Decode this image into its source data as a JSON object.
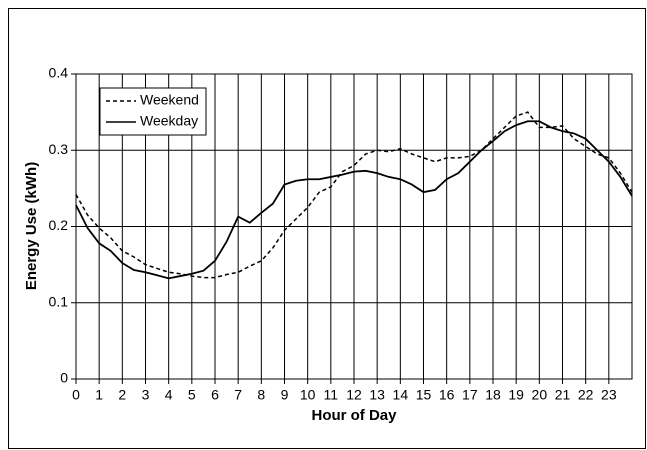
{
  "chart_data": {
    "type": "line",
    "xlabel": "Hour of Day",
    "ylabel": "Energy Use (kWh)",
    "x": [
      0,
      0.5,
      1,
      1.5,
      2,
      2.5,
      3,
      3.5,
      4,
      4.5,
      5,
      5.5,
      6,
      6.5,
      7,
      7.5,
      8,
      8.5,
      9,
      9.5,
      10,
      10.5,
      11,
      11.5,
      12,
      12.5,
      13,
      13.5,
      14,
      14.5,
      15,
      15.5,
      16,
      16.5,
      17,
      17.5,
      18,
      18.5,
      19,
      19.5,
      20,
      20.5,
      21,
      21.5,
      22,
      22.5,
      23,
      23.5,
      24
    ],
    "series": [
      {
        "name": "Weekend",
        "color": "#000000",
        "line_style": "dashed",
        "values": [
          0.242,
          0.215,
          0.198,
          0.185,
          0.168,
          0.16,
          0.15,
          0.145,
          0.14,
          0.138,
          0.135,
          0.133,
          0.133,
          0.137,
          0.14,
          0.148,
          0.155,
          0.172,
          0.195,
          0.21,
          0.225,
          0.245,
          0.252,
          0.272,
          0.28,
          0.295,
          0.3,
          0.298,
          0.302,
          0.295,
          0.29,
          0.285,
          0.29,
          0.29,
          0.292,
          0.3,
          0.315,
          0.33,
          0.345,
          0.35,
          0.33,
          0.33,
          0.332,
          0.315,
          0.305,
          0.295,
          0.29,
          0.27,
          0.245
        ]
      },
      {
        "name": "Weekday",
        "color": "#000000",
        "line_style": "solid",
        "values": [
          0.228,
          0.198,
          0.178,
          0.168,
          0.152,
          0.143,
          0.14,
          0.136,
          0.132,
          0.135,
          0.138,
          0.142,
          0.155,
          0.18,
          0.213,
          0.205,
          0.218,
          0.23,
          0.255,
          0.26,
          0.262,
          0.262,
          0.265,
          0.268,
          0.272,
          0.273,
          0.27,
          0.265,
          0.262,
          0.255,
          0.245,
          0.248,
          0.262,
          0.27,
          0.285,
          0.3,
          0.312,
          0.325,
          0.333,
          0.338,
          0.338,
          0.33,
          0.325,
          0.322,
          0.315,
          0.3,
          0.285,
          0.265,
          0.24
        ]
      }
    ],
    "xlim": [
      0,
      24
    ],
    "xticks": [
      0,
      1,
      2,
      3,
      4,
      5,
      6,
      7,
      8,
      9,
      10,
      11,
      12,
      13,
      14,
      15,
      16,
      17,
      18,
      19,
      20,
      21,
      22,
      23
    ],
    "ylim": [
      0,
      0.4
    ],
    "yticks": [
      0,
      0.1,
      0.2,
      0.3,
      0.4
    ],
    "grid": true,
    "legend": "upper left"
  }
}
